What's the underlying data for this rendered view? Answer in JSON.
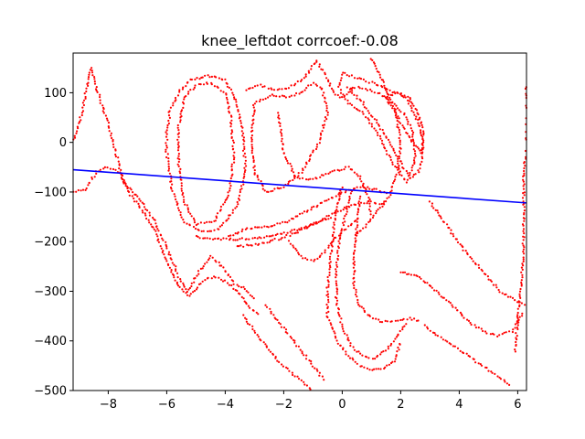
{
  "chart_data": {
    "type": "scatter",
    "title": "knee_leftdot corrcoef:-0.08",
    "xlabel": "",
    "ylabel": "",
    "xlim": [
      -9.2,
      6.3
    ],
    "ylim": [
      -500,
      180
    ],
    "xticks": [
      -8,
      -6,
      -4,
      -2,
      0,
      2,
      4,
      6
    ],
    "xtick_labels": [
      "−8",
      "−6",
      "−4",
      "−2",
      "0",
      "2",
      "4",
      "6"
    ],
    "yticks": [
      100,
      0,
      -100,
      -200,
      -300,
      -400,
      -500
    ],
    "ytick_labels": [
      "100",
      "0",
      "−100",
      "−200",
      "−300",
      "−400",
      "−500"
    ],
    "grid": false,
    "point_color": "#ff0000",
    "line_color": "#0000ff",
    "regression_line": {
      "x": [
        -9.2,
        6.3
      ],
      "y": [
        -55,
        -122
      ]
    },
    "series": [
      {
        "kind": "scatter",
        "paths": [
          [
            [
              -9.2,
              0
            ],
            [
              -8.9,
              60
            ],
            [
              -8.6,
              150
            ],
            [
              -8.3,
              90
            ],
            [
              -7.9,
              20
            ],
            [
              -7.5,
              -80
            ],
            [
              -7.0,
              -110
            ],
            [
              -6.5,
              -150
            ],
            [
              -6.0,
              -210
            ],
            [
              -5.6,
              -270
            ],
            [
              -5.3,
              -300
            ],
            [
              -4.9,
              -260
            ],
            [
              -4.5,
              -230
            ],
            [
              -4.1,
              -250
            ],
            [
              -3.7,
              -285
            ],
            [
              -3.3,
              -295
            ],
            [
              -3.0,
              -320
            ]
          ],
          [
            [
              -9.2,
              -100
            ],
            [
              -8.8,
              -95
            ],
            [
              -8.4,
              -60
            ],
            [
              -8.0,
              -50
            ],
            [
              -7.6,
              -60
            ],
            [
              -7.2,
              -110
            ],
            [
              -6.8,
              -140
            ],
            [
              -6.4,
              -180
            ],
            [
              -6.0,
              -240
            ],
            [
              -5.6,
              -290
            ],
            [
              -5.2,
              -310
            ],
            [
              -4.8,
              -280
            ],
            [
              -4.4,
              -270
            ],
            [
              -4.0,
              -280
            ],
            [
              -3.6,
              -300
            ],
            [
              -3.2,
              -330
            ],
            [
              -2.8,
              -350
            ]
          ],
          [
            [
              -6.0,
              20
            ],
            [
              -5.9,
              60
            ],
            [
              -5.6,
              100
            ],
            [
              -5.2,
              125
            ],
            [
              -4.6,
              135
            ],
            [
              -4.0,
              125
            ],
            [
              -3.6,
              80
            ],
            [
              -3.4,
              20
            ],
            [
              -3.3,
              -60
            ],
            [
              -3.6,
              -130
            ],
            [
              -4.2,
              -175
            ],
            [
              -4.8,
              -180
            ],
            [
              -5.4,
              -160
            ],
            [
              -5.8,
              -100
            ],
            [
              -6.0,
              -20
            ],
            [
              -6.0,
              20
            ]
          ],
          [
            [
              -5.6,
              30
            ],
            [
              -5.4,
              90
            ],
            [
              -5.0,
              115
            ],
            [
              -4.5,
              120
            ],
            [
              -4.0,
              100
            ],
            [
              -3.8,
              50
            ],
            [
              -3.7,
              -30
            ],
            [
              -3.9,
              -110
            ],
            [
              -4.4,
              -160
            ],
            [
              -5.0,
              -165
            ],
            [
              -5.4,
              -120
            ],
            [
              -5.6,
              -40
            ],
            [
              -5.6,
              30
            ]
          ],
          [
            [
              -3.9,
              -190
            ],
            [
              -3.3,
              -175
            ],
            [
              -2.6,
              -170
            ],
            [
              -1.9,
              -160
            ],
            [
              -1.3,
              -140
            ],
            [
              -0.6,
              -120
            ],
            [
              0.0,
              -100
            ],
            [
              0.6,
              -90
            ],
            [
              1.2,
              -95
            ],
            [
              1.6,
              -105
            ]
          ],
          [
            [
              -3.6,
              -210
            ],
            [
              -2.9,
              -205
            ],
            [
              -2.2,
              -195
            ],
            [
              -1.5,
              -180
            ],
            [
              -0.8,
              -160
            ],
            [
              -0.2,
              -140
            ],
            [
              0.4,
              -125
            ],
            [
              1.0,
              -120
            ],
            [
              1.5,
              -125
            ]
          ],
          [
            [
              -3.3,
              105
            ],
            [
              -2.8,
              115
            ],
            [
              -2.3,
              105
            ],
            [
              -1.8,
              110
            ],
            [
              -1.3,
              130
            ],
            [
              -0.9,
              165
            ],
            [
              -0.6,
              140
            ],
            [
              -0.3,
              100
            ],
            [
              0.0,
              90
            ],
            [
              0.4,
              110
            ]
          ],
          [
            [
              -3.0,
              80
            ],
            [
              -2.4,
              95
            ],
            [
              -1.9,
              92
            ],
            [
              -1.4,
              100
            ],
            [
              -1.0,
              120
            ],
            [
              -0.7,
              110
            ],
            [
              -0.5,
              60
            ],
            [
              -0.8,
              0
            ],
            [
              -1.4,
              -60
            ],
            [
              -2.0,
              -90
            ],
            [
              -2.6,
              -100
            ],
            [
              -3.0,
              -60
            ],
            [
              -3.1,
              20
            ],
            [
              -3.0,
              80
            ]
          ],
          [
            [
              -2.2,
              60
            ],
            [
              -2.0,
              -20
            ],
            [
              -1.6,
              -70
            ],
            [
              -1.0,
              -75
            ],
            [
              -0.4,
              -60
            ],
            [
              0.2,
              -50
            ],
            [
              0.6,
              -70
            ],
            [
              0.9,
              -110
            ],
            [
              1.0,
              -150
            ]
          ],
          [
            [
              0.0,
              140
            ],
            [
              0.5,
              130
            ],
            [
              1.0,
              120
            ],
            [
              1.4,
              110
            ],
            [
              1.8,
              100
            ],
            [
              2.2,
              90
            ],
            [
              2.6,
              40
            ],
            [
              2.8,
              -10
            ],
            [
              2.6,
              -60
            ],
            [
              2.2,
              -80
            ],
            [
              1.7,
              -40
            ],
            [
              1.2,
              20
            ],
            [
              0.7,
              60
            ],
            [
              0.2,
              80
            ],
            [
              -0.1,
              110
            ],
            [
              0.0,
              140
            ]
          ],
          [
            [
              0.2,
              110
            ],
            [
              0.7,
              80
            ],
            [
              1.2,
              40
            ],
            [
              1.6,
              0
            ],
            [
              2.0,
              -40
            ],
            [
              2.3,
              -70
            ],
            [
              2.5,
              -30
            ],
            [
              2.4,
              20
            ],
            [
              2.1,
              60
            ],
            [
              1.7,
              80
            ],
            [
              1.2,
              100
            ],
            [
              0.7,
              110
            ],
            [
              0.2,
              110
            ]
          ],
          [
            [
              1.5,
              90
            ],
            [
              1.8,
              60
            ],
            [
              2.1,
              30
            ],
            [
              2.4,
              0
            ],
            [
              2.7,
              -20
            ],
            [
              2.8,
              20
            ],
            [
              2.6,
              60
            ],
            [
              2.3,
              90
            ],
            [
              1.9,
              100
            ],
            [
              1.5,
              90
            ]
          ],
          [
            [
              0.0,
              -90
            ],
            [
              -0.2,
              -130
            ],
            [
              -0.3,
              -180
            ],
            [
              -0.4,
              -230
            ],
            [
              -0.5,
              -290
            ],
            [
              -0.5,
              -350
            ],
            [
              -0.2,
              -400
            ],
            [
              0.2,
              -430
            ],
            [
              0.6,
              -450
            ],
            [
              1.0,
              -460
            ],
            [
              1.4,
              -455
            ],
            [
              1.8,
              -440
            ],
            [
              2.0,
              -400
            ]
          ],
          [
            [
              0.3,
              -100
            ],
            [
              0.1,
              -150
            ],
            [
              -0.1,
              -200
            ],
            [
              -0.2,
              -260
            ],
            [
              -0.2,
              -320
            ],
            [
              0.0,
              -370
            ],
            [
              0.3,
              -410
            ],
            [
              0.7,
              -430
            ],
            [
              1.1,
              -435
            ],
            [
              1.5,
              -420
            ],
            [
              1.9,
              -390
            ],
            [
              2.2,
              -360
            ]
          ],
          [
            [
              0.6,
              -110
            ],
            [
              0.5,
              -170
            ],
            [
              0.4,
              -230
            ],
            [
              0.4,
              -290
            ],
            [
              0.6,
              -330
            ],
            [
              0.9,
              -350
            ],
            [
              1.3,
              -360
            ],
            [
              1.8,
              -360
            ],
            [
              2.3,
              -355
            ],
            [
              2.7,
              -360
            ]
          ],
          [
            [
              -3.4,
              -350
            ],
            [
              -3.0,
              -380
            ],
            [
              -2.6,
              -410
            ],
            [
              -2.2,
              -440
            ],
            [
              -1.8,
              -460
            ],
            [
              -1.4,
              -480
            ],
            [
              -1.0,
              -500
            ]
          ],
          [
            [
              -2.6,
              -330
            ],
            [
              -2.2,
              -360
            ],
            [
              -1.8,
              -390
            ],
            [
              -1.4,
              -420
            ],
            [
              -1.0,
              -450
            ],
            [
              -0.6,
              -480
            ]
          ],
          [
            [
              2.0,
              -260
            ],
            [
              2.6,
              -270
            ],
            [
              3.2,
              -300
            ],
            [
              3.8,
              -330
            ],
            [
              4.3,
              -360
            ],
            [
              4.8,
              -380
            ],
            [
              5.3,
              -390
            ],
            [
              5.8,
              -380
            ],
            [
              6.2,
              -340
            ]
          ],
          [
            [
              2.8,
              -370
            ],
            [
              3.3,
              -390
            ],
            [
              3.8,
              -410
            ],
            [
              4.3,
              -430
            ],
            [
              4.8,
              -450
            ],
            [
              5.3,
              -470
            ],
            [
              5.8,
              -490
            ]
          ],
          [
            [
              3.0,
              -120
            ],
            [
              3.6,
              -170
            ],
            [
              4.2,
              -220
            ],
            [
              4.8,
              -260
            ],
            [
              5.4,
              -300
            ],
            [
              6.0,
              -320
            ],
            [
              6.3,
              -330
            ]
          ],
          [
            [
              5.9,
              -420
            ],
            [
              6.0,
              -360
            ],
            [
              6.1,
              -300
            ],
            [
              6.2,
              -230
            ],
            [
              6.2,
              -160
            ],
            [
              6.2,
              -80
            ],
            [
              6.3,
              0
            ],
            [
              6.3,
              60
            ],
            [
              6.3,
              120
            ]
          ],
          [
            [
              -1.8,
              -200
            ],
            [
              -1.4,
              -230
            ],
            [
              -1.0,
              -240
            ],
            [
              -0.6,
              -220
            ],
            [
              -0.2,
              -190
            ],
            [
              0.2,
              -170
            ],
            [
              0.6,
              -150
            ]
          ],
          [
            [
              1.0,
              170
            ],
            [
              1.4,
              120
            ],
            [
              1.8,
              70
            ],
            [
              2.0,
              0
            ],
            [
              1.9,
              -60
            ],
            [
              1.6,
              -110
            ],
            [
              1.2,
              -140
            ],
            [
              0.8,
              -170
            ],
            [
              0.4,
              -190
            ]
          ],
          [
            [
              -5.0,
              -190
            ],
            [
              -4.2,
              -195
            ],
            [
              -3.4,
              -195
            ],
            [
              -2.6,
              -190
            ],
            [
              -1.8,
              -180
            ],
            [
              -1.0,
              -165
            ],
            [
              -0.3,
              -150
            ]
          ]
        ]
      }
    ]
  }
}
